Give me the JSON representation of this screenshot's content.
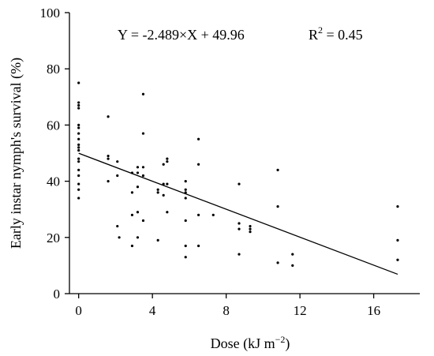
{
  "chart_data": {
    "type": "scatter",
    "xlabel_main": "Dose (kJ m",
    "xlabel_sup": "−2",
    "xlabel_close": ")",
    "ylabel": "Early instar nymph's survival (%)",
    "xlim": [
      -0.5,
      18.5
    ],
    "ylim": [
      0,
      100
    ],
    "xticks": [
      0,
      4,
      8,
      12,
      16
    ],
    "yticks": [
      0,
      20,
      40,
      60,
      80,
      100
    ],
    "equation": "Y = -2.489×X + 49.96",
    "r2_label": "R",
    "r2_sup": "2",
    "r2_value": " = 0.45",
    "fit": {
      "slope": -2.489,
      "intercept": 49.96,
      "x_range": [
        0,
        17.3
      ]
    },
    "points": [
      [
        0,
        75
      ],
      [
        0,
        68
      ],
      [
        0,
        67
      ],
      [
        0,
        66
      ],
      [
        0,
        60
      ],
      [
        0,
        59
      ],
      [
        0,
        57
      ],
      [
        0,
        55
      ],
      [
        0,
        53
      ],
      [
        0,
        52
      ],
      [
        0,
        51
      ],
      [
        0,
        48
      ],
      [
        0,
        47
      ],
      [
        0,
        44
      ],
      [
        0,
        42
      ],
      [
        0,
        39
      ],
      [
        0,
        37
      ],
      [
        0,
        34
      ],
      [
        1.6,
        63
      ],
      [
        1.6,
        49
      ],
      [
        1.6,
        48
      ],
      [
        1.6,
        40
      ],
      [
        2.1,
        47
      ],
      [
        2.1,
        42
      ],
      [
        2.1,
        24
      ],
      [
        2.2,
        20
      ],
      [
        2.9,
        43
      ],
      [
        2.9,
        36
      ],
      [
        2.9,
        28
      ],
      [
        2.9,
        17
      ],
      [
        3.2,
        45
      ],
      [
        3.2,
        43
      ],
      [
        3.2,
        38
      ],
      [
        3.2,
        29
      ],
      [
        3.2,
        20
      ],
      [
        3.5,
        71
      ],
      [
        3.5,
        57
      ],
      [
        3.5,
        45
      ],
      [
        3.5,
        42
      ],
      [
        3.5,
        26
      ],
      [
        4.3,
        37
      ],
      [
        4.3,
        36
      ],
      [
        4.3,
        19
      ],
      [
        4.6,
        46
      ],
      [
        4.6,
        39
      ],
      [
        4.6,
        35
      ],
      [
        4.8,
        48
      ],
      [
        4.8,
        47
      ],
      [
        4.8,
        39
      ],
      [
        4.8,
        29
      ],
      [
        5.8,
        40
      ],
      [
        5.8,
        37
      ],
      [
        5.8,
        36
      ],
      [
        5.8,
        34
      ],
      [
        5.8,
        26
      ],
      [
        5.8,
        17
      ],
      [
        5.8,
        13
      ],
      [
        6.5,
        55
      ],
      [
        6.5,
        46
      ],
      [
        6.5,
        28
      ],
      [
        6.5,
        17
      ],
      [
        7.3,
        28
      ],
      [
        8.7,
        39
      ],
      [
        8.7,
        25
      ],
      [
        8.7,
        23
      ],
      [
        8.7,
        14
      ],
      [
        9.3,
        24
      ],
      [
        9.3,
        23
      ],
      [
        9.3,
        22
      ],
      [
        10.8,
        44
      ],
      [
        10.8,
        31
      ],
      [
        10.8,
        11
      ],
      [
        11.6,
        14
      ],
      [
        11.6,
        10
      ],
      [
        17.3,
        31
      ],
      [
        17.3,
        19
      ],
      [
        17.3,
        12
      ]
    ]
  }
}
